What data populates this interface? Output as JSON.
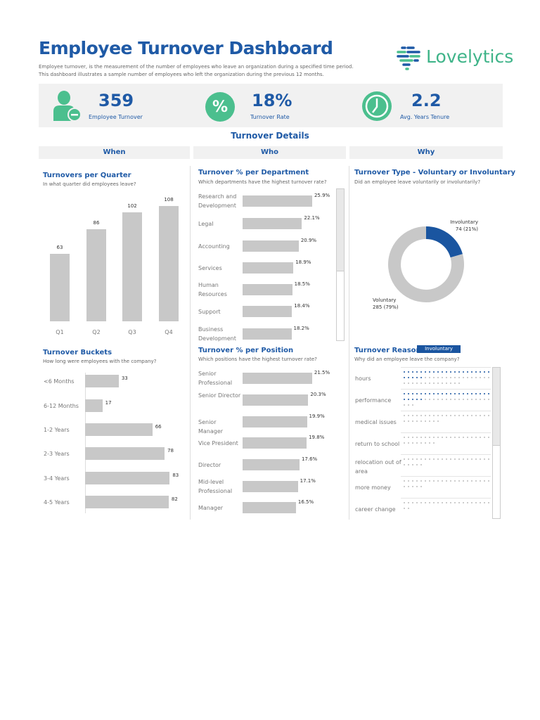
{
  "header": {
    "title": "Employee Turnover Dashboard",
    "description": [
      "Employee turnover, is the measurement of the number of employees who leave an organization during a specified time period.",
      "This dashboard illustrates a sample number of employees who left the organization during the previous 12 months."
    ],
    "logo": "Lovelytics"
  },
  "kpis": [
    {
      "value": "359",
      "label": "Employee Turnover",
      "icon": "person-minus-icon"
    },
    {
      "value": "18%",
      "label": "Turnover Rate",
      "icon": "percent-icon"
    },
    {
      "value": "2.2",
      "label": "Avg. Years Tenure",
      "icon": "clock-icon"
    }
  ],
  "section_title": "Turnover Details",
  "columns": [
    "When",
    "Who",
    "Why"
  ],
  "colors": {
    "brand": "#1f5aa6",
    "accent": "#4bbf8e",
    "bar": "#c8c8c8",
    "involuntary": "#1a55a0",
    "voluntary": "#c8c8c8"
  },
  "filter_badge": "Involuntary",
  "chart_data": [
    {
      "type": "bar",
      "title": "Turnovers per Quarter",
      "subtitle": "In what quarter did employees leave?",
      "categories": [
        "Q1",
        "Q2",
        "Q3",
        "Q4"
      ],
      "values": [
        63,
        86,
        102,
        108
      ]
    },
    {
      "type": "bar",
      "orientation": "horizontal",
      "title": "Turnover Buckets",
      "subtitle": "How long were employees with the company?",
      "categories": [
        "<6 Months",
        "6-12 Months",
        "1-2 Years",
        "2-3 Years",
        "3-4 Years",
        "4-5 Years"
      ],
      "values": [
        33,
        17,
        66,
        78,
        83,
        82
      ]
    },
    {
      "type": "bar",
      "orientation": "horizontal",
      "title": "Turnover % per Department",
      "subtitle": "Which departments have the highest turnover rate?",
      "categories": [
        "Research and Development",
        "Legal",
        "Accounting",
        "Services",
        "Human Resources",
        "Support",
        "Business Development"
      ],
      "values": [
        25.9,
        22.1,
        20.9,
        18.9,
        18.5,
        18.4,
        18.2
      ],
      "labels": [
        "25.9%",
        "22.1%",
        "20.9%",
        "18.9%",
        "18.5%",
        "18.4%",
        "18.2%"
      ]
    },
    {
      "type": "bar",
      "orientation": "horizontal",
      "title": "Turnover % per Position",
      "subtitle": "Which positions have the highest turnover rate?",
      "categories": [
        "Senior Professional",
        "Senior Director",
        "Senior Manager",
        "Vice President",
        "Director",
        "Mid-level Professional",
        "Manager"
      ],
      "values": [
        21.5,
        20.3,
        19.9,
        19.8,
        17.6,
        17.1,
        16.5
      ],
      "labels": [
        "21.5%",
        "20.3%",
        "19.9%",
        "19.8%",
        "17.6%",
        "17.1%",
        "16.5%"
      ]
    },
    {
      "type": "pie",
      "donut": true,
      "title": "Turnover Type - Voluntary or Involuntary",
      "subtitle": "Did an employee leave voluntarily or involuntarily?",
      "slices": [
        {
          "name": "Involuntary",
          "value": 74,
          "label": "74 (21%)"
        },
        {
          "name": "Voluntary",
          "value": 285,
          "label": "285 (79%)"
        }
      ]
    },
    {
      "type": "dot-plot",
      "title": "Turnover Reason",
      "subtitle": "Why did an employee leave the company?",
      "categories": [
        "hours",
        "performance",
        "medical issues",
        "return to school",
        "relocation out of area",
        "more money",
        "career change"
      ],
      "total": [
        56,
        45,
        30,
        29,
        26,
        26,
        23
      ],
      "involuntary": [
        26,
        26,
        0,
        0,
        0,
        0,
        0
      ]
    }
  ]
}
